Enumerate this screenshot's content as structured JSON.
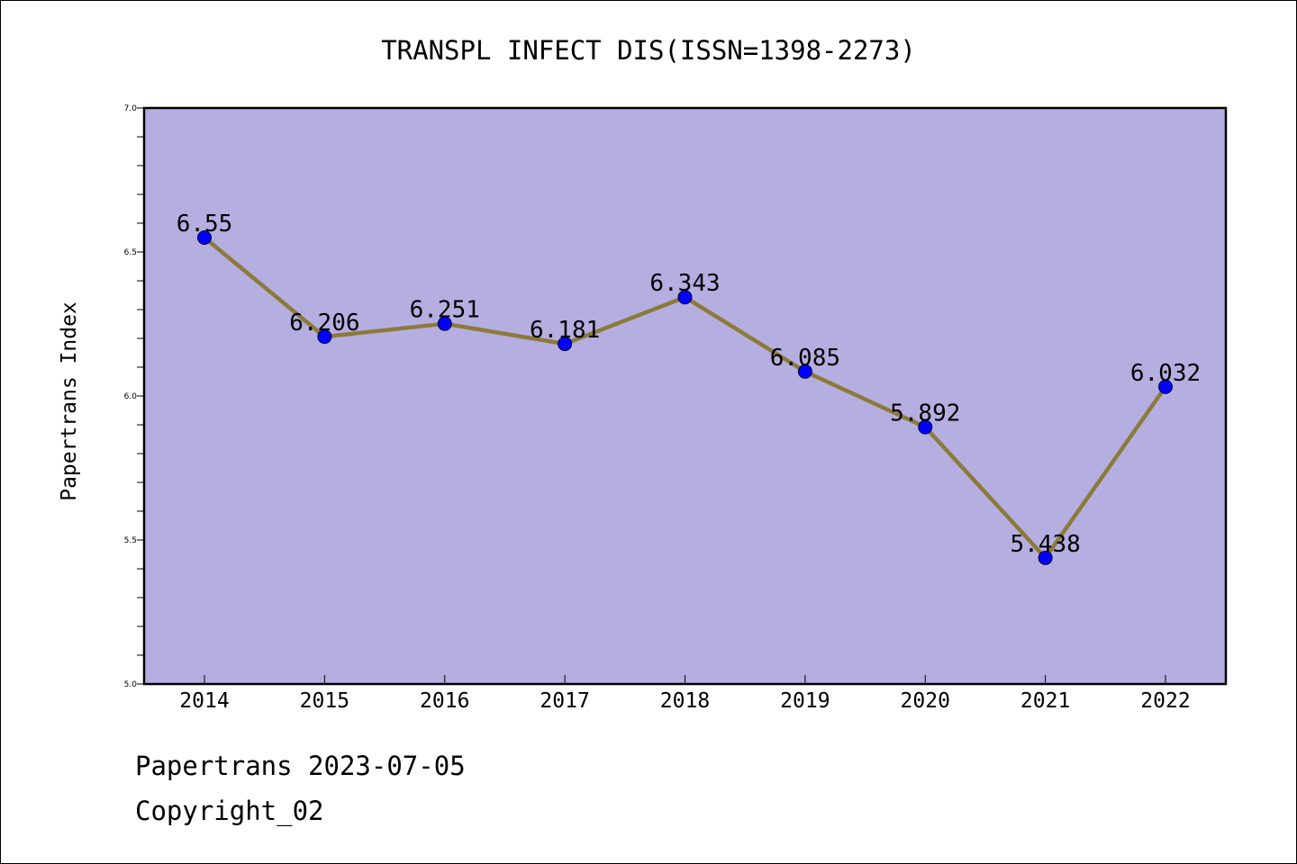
{
  "chart_data": {
    "type": "line",
    "title": "TRANSPL INFECT DIS(ISSN=1398-2273)",
    "xlabel": "",
    "ylabel": "Papertrans Index",
    "categories": [
      "2014",
      "2015",
      "2016",
      "2017",
      "2018",
      "2019",
      "2020",
      "2021",
      "2022"
    ],
    "values": [
      6.55,
      6.206,
      6.251,
      6.181,
      6.343,
      6.085,
      5.892,
      5.438,
      6.032
    ],
    "data_labels": [
      "6.55",
      "6.206",
      "6.251",
      "6.181",
      "6.343",
      "6.085",
      "5.892",
      "5.438",
      "6.032"
    ],
    "ylim": [
      5.0,
      7.0
    ],
    "yticks": [
      "5.0",
      "5.5",
      "6.0",
      "6.5",
      "7.0"
    ],
    "yticks_values": [
      5.0,
      5.5,
      6.0,
      6.5,
      7.0
    ],
    "y_minor_step": 0.1,
    "grid": false,
    "colors": {
      "plot_background": "#b5afe1",
      "line": "#8c7a3b",
      "marker": "#0000ff",
      "axis": "#000000"
    }
  },
  "footer": {
    "source_date": "Papertrans 2023-07-05",
    "copyright": "Copyright_02"
  }
}
